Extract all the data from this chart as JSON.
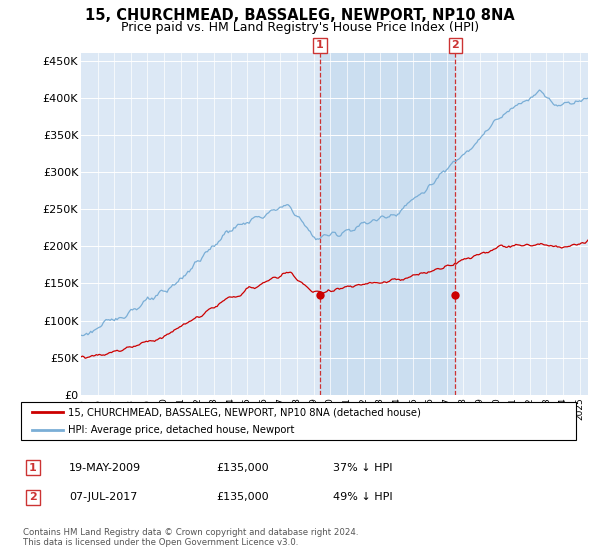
{
  "title": "15, CHURCHMEAD, BASSALEG, NEWPORT, NP10 8NA",
  "subtitle": "Price paid vs. HM Land Registry's House Price Index (HPI)",
  "ylabel_ticks": [
    "£0",
    "£50K",
    "£100K",
    "£150K",
    "£200K",
    "£250K",
    "£300K",
    "£350K",
    "£400K",
    "£450K"
  ],
  "ytick_values": [
    0,
    50000,
    100000,
    150000,
    200000,
    250000,
    300000,
    350000,
    400000,
    450000
  ],
  "ylim": [
    0,
    460000
  ],
  "xlim_start": 1995.0,
  "xlim_end": 2025.5,
  "plot_bg": "#dce8f5",
  "shade_color": "#c8ddf0",
  "red_line_color": "#cc0000",
  "blue_line_color": "#7aaed6",
  "marker1_date": 2009.38,
  "marker1_value": 135000,
  "marker2_date": 2017.52,
  "marker2_value": 135000,
  "legend_label_red": "15, CHURCHMEAD, BASSALEG, NEWPORT, NP10 8NA (detached house)",
  "legend_label_blue": "HPI: Average price, detached house, Newport",
  "table_rows": [
    {
      "num": "1",
      "date": "19-MAY-2009",
      "price": "£135,000",
      "pct": "37% ↓ HPI"
    },
    {
      "num": "2",
      "date": "07-JUL-2017",
      "price": "£135,000",
      "pct": "49% ↓ HPI"
    }
  ],
  "footer": "Contains HM Land Registry data © Crown copyright and database right 2024.\nThis data is licensed under the Open Government Licence v3.0.",
  "marker_label_color": "#cc3333",
  "vline_color": "#cc3333",
  "title_fontsize": 10.5,
  "subtitle_fontsize": 9,
  "grid_color": "#b8c8d8"
}
